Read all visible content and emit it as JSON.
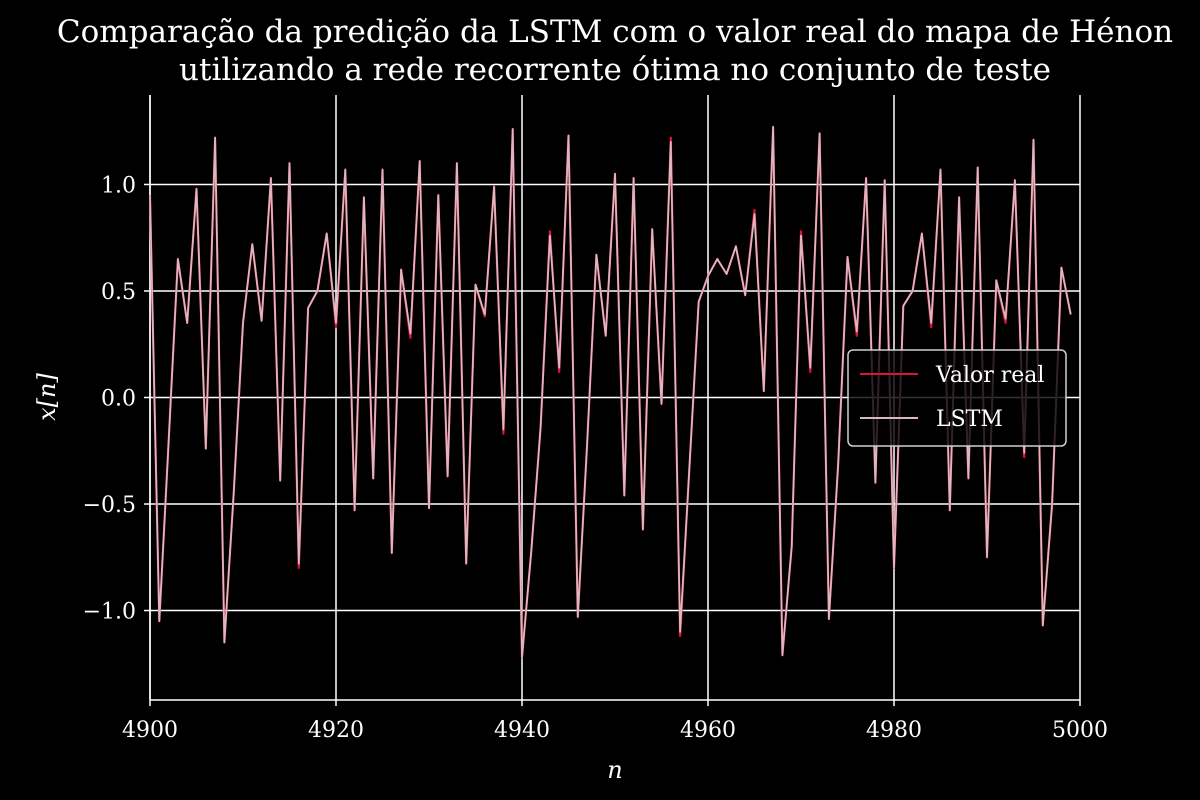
{
  "chart_data": {
    "type": "line",
    "title_line1": "Comparação da predição da LSTM com o valor real do mapa de Hénon",
    "title_line2": "utilizando a rede recorrente ótima no conjunto de teste",
    "xlabel": "n",
    "ylabel": "x[n]",
    "xlim": [
      4900,
      5000
    ],
    "ylim": [
      -1.42,
      1.42
    ],
    "xticks": [
      4900,
      4920,
      4940,
      4960,
      4980,
      5000
    ],
    "xtick_labels": [
      "4900",
      "4920",
      "4940",
      "4960",
      "4980",
      "5000"
    ],
    "yticks": [
      -1.0,
      -0.5,
      0.0,
      0.5,
      1.0
    ],
    "ytick_labels": [
      "−1.0",
      "−0.5",
      "0.0",
      "0.5",
      "1.0"
    ],
    "grid": true,
    "legend_position": "center-right",
    "x_start": 4900,
    "series": [
      {
        "name": "Valor real",
        "color": "#dc143c",
        "values": [
          0.95,
          -1.05,
          -0.21,
          0.65,
          0.35,
          0.98,
          -0.24,
          1.22,
          -1.15,
          -0.45,
          0.35,
          0.72,
          0.36,
          1.03,
          -0.39,
          1.1,
          -0.8,
          0.42,
          0.5,
          0.77,
          0.33,
          1.07,
          -0.53,
          0.94,
          -0.38,
          1.07,
          -0.73,
          0.6,
          0.28,
          1.11,
          -0.52,
          0.95,
          -0.37,
          1.1,
          -0.78,
          0.53,
          0.38,
          0.99,
          -0.17,
          1.26,
          -1.22,
          -0.72,
          -0.14,
          0.78,
          0.12,
          1.23,
          -1.03,
          -0.22,
          0.67,
          0.29,
          1.05,
          -0.46,
          1.03,
          -0.62,
          0.79,
          -0.03,
          1.22,
          -1.12,
          -0.33,
          0.45,
          0.57,
          0.65,
          0.58,
          0.71,
          0.48,
          0.88,
          0.03,
          1.27,
          -1.21,
          -0.7,
          0.78,
          0.12,
          1.24,
          -1.04,
          -0.31,
          0.66,
          0.29,
          1.03,
          -0.4,
          1.02,
          -0.8,
          0.43,
          0.5,
          0.77,
          0.33,
          1.07,
          -0.53,
          0.94,
          -0.38,
          1.08,
          -0.75,
          0.55,
          0.35,
          1.02,
          -0.28,
          1.21,
          -1.07,
          -0.5,
          0.61,
          0.39
        ]
      },
      {
        "name": "LSTM",
        "color": "#d9b8c0",
        "values": [
          0.95,
          -1.05,
          -0.21,
          0.65,
          0.35,
          0.98,
          -0.24,
          1.22,
          -1.15,
          -0.45,
          0.35,
          0.72,
          0.36,
          1.03,
          -0.39,
          1.1,
          -0.78,
          0.42,
          0.5,
          0.77,
          0.35,
          1.07,
          -0.53,
          0.94,
          -0.38,
          1.07,
          -0.73,
          0.6,
          0.3,
          1.11,
          -0.52,
          0.95,
          -0.37,
          1.1,
          -0.78,
          0.53,
          0.39,
          0.99,
          -0.15,
          1.26,
          -1.22,
          -0.72,
          -0.14,
          0.76,
          0.14,
          1.23,
          -1.03,
          -0.22,
          0.67,
          0.29,
          1.05,
          -0.46,
          1.03,
          -0.62,
          0.79,
          -0.03,
          1.2,
          -1.1,
          -0.33,
          0.45,
          0.57,
          0.65,
          0.58,
          0.71,
          0.48,
          0.86,
          0.03,
          1.27,
          -1.21,
          -0.7,
          0.76,
          0.14,
          1.24,
          -1.04,
          -0.31,
          0.66,
          0.31,
          1.03,
          -0.4,
          1.02,
          -0.8,
          0.43,
          0.5,
          0.77,
          0.35,
          1.07,
          -0.53,
          0.94,
          -0.38,
          1.08,
          -0.75,
          0.55,
          0.37,
          1.02,
          -0.26,
          1.21,
          -1.07,
          -0.5,
          0.61,
          0.39
        ]
      }
    ]
  }
}
